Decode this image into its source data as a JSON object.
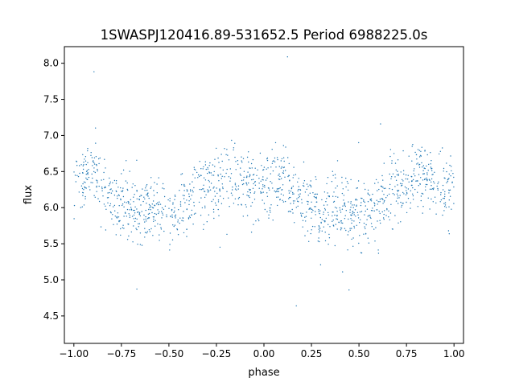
{
  "chart_data": {
    "type": "scatter",
    "title": "1SWASPJ120416.89-531652.5 Period 6988225.0s",
    "xlabel": "phase",
    "ylabel": "flux",
    "xlim": [
      -1.05,
      1.05
    ],
    "ylim": [
      4.12,
      8.23
    ],
    "xticks": [
      -1.0,
      -0.75,
      -0.5,
      -0.25,
      0.0,
      0.25,
      0.5,
      0.75,
      1.0
    ],
    "xtick_labels": [
      "−1.00",
      "−0.75",
      "−0.50",
      "−0.25",
      "0.00",
      "0.25",
      "0.50",
      "0.75",
      "1.00"
    ],
    "yticks": [
      4.5,
      5.0,
      5.5,
      6.0,
      6.5,
      7.0,
      7.5,
      8.0
    ],
    "ytick_labels": [
      "4.5",
      "5.0",
      "5.5",
      "6.0",
      "6.5",
      "7.0",
      "7.5",
      "8.0"
    ],
    "grid": false,
    "legend": "none",
    "marker_color": "#1f77b4",
    "series": [
      {
        "x": [
          -1.0,
          -0.95,
          -0.9,
          -0.85,
          -0.8,
          -0.75,
          -0.7,
          -0.65,
          -0.6,
          -0.55,
          -0.5,
          -0.45,
          -0.4,
          -0.35,
          -0.3,
          -0.25,
          -0.2,
          -0.15,
          -0.1,
          -0.05,
          0.0,
          0.05,
          0.1,
          0.15,
          0.2,
          0.25,
          0.3,
          0.35,
          0.4,
          0.45,
          0.5,
          0.55,
          0.6,
          0.65,
          0.7,
          0.75,
          0.8,
          0.85,
          0.9,
          0.95,
          1.0
        ],
        "y": [
          6.35,
          6.4,
          6.45,
          6.3,
          6.1,
          6.05,
          5.95,
          5.9,
          6.0,
          5.95,
          5.9,
          5.95,
          6.05,
          6.15,
          6.25,
          6.3,
          6.4,
          6.4,
          6.3,
          6.3,
          6.3,
          6.35,
          6.45,
          6.3,
          6.1,
          6.05,
          5.95,
          5.9,
          6.0,
          5.95,
          5.9,
          5.95,
          6.05,
          6.15,
          6.25,
          6.3,
          6.4,
          6.4,
          6.3,
          6.3,
          6.35
        ]
      }
    ]
  }
}
